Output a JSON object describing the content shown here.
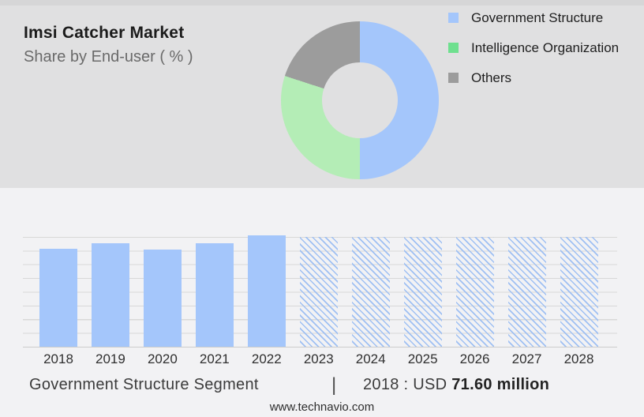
{
  "header": {
    "title": "Imsi Catcher Market",
    "subtitle": "Share by End-user ( % )"
  },
  "legend": {
    "items": [
      {
        "label": "Government Structure",
        "color": "#a4c6fb"
      },
      {
        "label": "Intelligence Organization",
        "color": "#6fe08f"
      },
      {
        "label": "Others",
        "color": "#9c9c9c"
      }
    ]
  },
  "chart_data": [
    {
      "type": "pie",
      "subtype": "donut",
      "title": "Imsi Catcher Market — Share by End-user ( % )",
      "labels": [
        "Government Structure",
        "Intelligence Organization",
        "Others"
      ],
      "values_percent": [
        50,
        30,
        20
      ],
      "slice_colors": [
        "#a4c6fb",
        "#b4edb6",
        "#9c9c9c"
      ],
      "hole_ratio": 0.48,
      "start_angle": "12 o'clock",
      "direction": "clockwise",
      "legend_position": "right"
    },
    {
      "type": "bar",
      "categories": [
        "2018",
        "2019",
        "2020",
        "2021",
        "2022",
        "2023",
        "2024",
        "2025",
        "2026",
        "2027",
        "2028"
      ],
      "series": [
        {
          "name": "Government Structure",
          "values_usd_million_est": [
            71.6,
            75.4,
            71.3,
            75.4,
            81.4,
            null,
            null,
            null,
            null,
            null,
            null
          ]
        }
      ],
      "forecast_categories": [
        "2023",
        "2024",
        "2025",
        "2026",
        "2027",
        "2028"
      ],
      "forecast_style": "diagonal-hatch-full-height",
      "bar_color": "#a4c6fb",
      "hatch_color": "#9fc0f3",
      "ylim_usd_million": [
        0,
        80.3
      ],
      "gridline_count": 9,
      "grid": "horizontal only",
      "xlabel": "",
      "ylabel": ""
    }
  ],
  "caption": {
    "segment_label": "Government Structure Segment",
    "separator": "|",
    "value_prefix": "2018 : USD ",
    "value_bold": "71.60 million"
  },
  "footer": {
    "url": "www.technavio.com"
  }
}
